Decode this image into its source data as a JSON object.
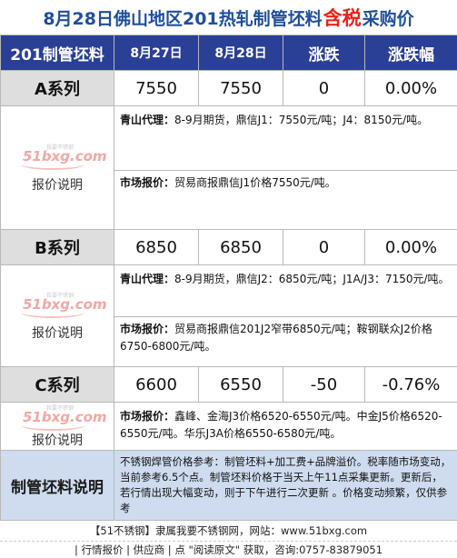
{
  "title": {
    "part1": "8月28日佛山地区201热轧制管坯料",
    "highlight": "含税",
    "part2": "采购价"
  },
  "header": {
    "col0": "201制管坯料",
    "col1": "8月27日",
    "col2": "8月28日",
    "col3": "涨跌",
    "col4": "涨跌幅"
  },
  "rows": [
    {
      "name": "A系列",
      "d27": "7550",
      "d28": "7550",
      "change": "0",
      "pct": "0.00%",
      "note_label": "报价说明",
      "note1_bold": "青山代理：",
      "note1_text": "8-9月期货，鼎信J1：7550元/吨；J4：8150元/吨。",
      "note2_bold": "市场报价：",
      "note2_text": "贸易商报鼎信J1价格7550元/吨。"
    },
    {
      "name": "B系列",
      "d27": "6850",
      "d28": "6850",
      "change": "0",
      "pct": "0.00%",
      "note_label": "报价说明",
      "note1_bold": "青山代理：",
      "note1_text": "8-9月期货，鼎信J2：6850元/吨；J1A/J3：7150元/吨。",
      "note2_bold": "市场报价：",
      "note2_text": "贸易商报鼎信201J2窄带6850元/吨；鞍钢联众J2价格6750-6800元/吨。"
    },
    {
      "name": "C系列",
      "d27": "6600",
      "d28": "6550",
      "change": "-50",
      "pct": "-0.76%",
      "note_label": "报价说明",
      "note1_bold": "市场报价：",
      "note1_text": "鑫峰、金海J3价格6520-6550元/吨。中金J5价格6520-6550元/吨。华乐J3A价格6550-6580元/吨。"
    }
  ],
  "watermark": {
    "logo": "51bxg.com",
    "tag": "我要不锈钢"
  },
  "footer": {
    "label": "制管坯料说明",
    "text": "不锈钢焊管价格参考：制管坯料+加工费+品牌溢价。税率随市场变动，当前参考6.5个点。制管坯料价格于当天上午11点采集更新。更新后，若行情出现大幅变动，则于下午进行二次更新 。价格变动频繁，仅供参考"
  },
  "bottom": {
    "line1": "【51不锈钢】隶属我要不锈钢网，网站：www.51bxg.com",
    "line2": "| 行情报价 | 供应商 | 点 \"阅读原文\" 获取，咨询:0757-83879051"
  },
  "colors": {
    "header_bg": "#2a3f96",
    "title": "#1f4e9c",
    "highlight": "#e8231b",
    "footer_bg": "#cfdcef"
  }
}
